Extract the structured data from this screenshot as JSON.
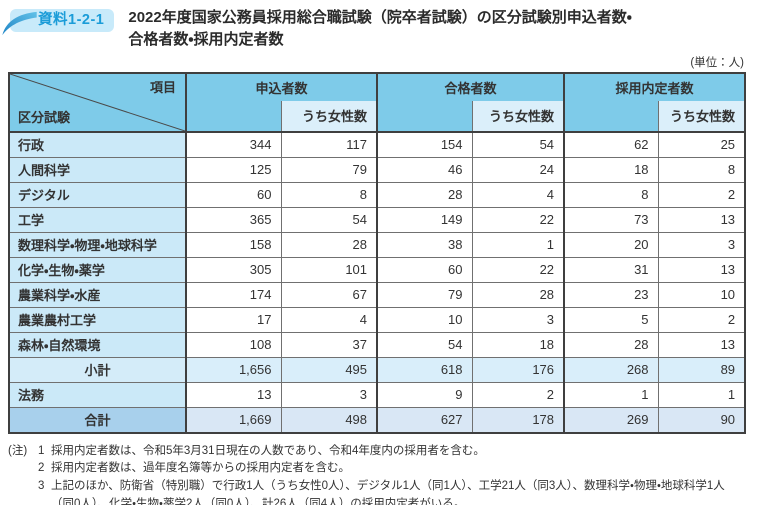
{
  "page": {
    "badge": "資料1-2-1",
    "title_line1": "2022年度国家公務員採用総合職試験（院卒者試験）の区分試験別申込者数・",
    "title_line2": "合格者数・採用内定者数",
    "unit_note": "(単位：人)"
  },
  "table": {
    "corner": {
      "top": "項目",
      "bottom": "区分試験"
    },
    "col_groups": [
      {
        "label": "申込者数",
        "sub": "うち女性数"
      },
      {
        "label": "合格者数",
        "sub": "うち女性数"
      },
      {
        "label": "採用内定者数",
        "sub": "うち女性数"
      }
    ],
    "rows": [
      {
        "label": "行政",
        "type": "normal",
        "values": [
          "344",
          "117",
          "154",
          "54",
          "62",
          "25"
        ]
      },
      {
        "label": "人間科学",
        "type": "normal",
        "values": [
          "125",
          "79",
          "46",
          "24",
          "18",
          "8"
        ]
      },
      {
        "label": "デジタル",
        "type": "normal",
        "values": [
          "60",
          "8",
          "28",
          "4",
          "8",
          "2"
        ]
      },
      {
        "label": "工学",
        "type": "normal",
        "values": [
          "365",
          "54",
          "149",
          "22",
          "73",
          "13"
        ]
      },
      {
        "label": "数理科学・物理・地球科学",
        "type": "normal",
        "values": [
          "158",
          "28",
          "38",
          "1",
          "20",
          "3"
        ]
      },
      {
        "label": "化学・生物・薬学",
        "type": "normal",
        "values": [
          "305",
          "101",
          "60",
          "22",
          "31",
          "13"
        ]
      },
      {
        "label": "農業科学・水産",
        "type": "normal",
        "values": [
          "174",
          "67",
          "79",
          "28",
          "23",
          "10"
        ]
      },
      {
        "label": "農業農村工学",
        "type": "normal",
        "values": [
          "17",
          "4",
          "10",
          "3",
          "5",
          "2"
        ]
      },
      {
        "label": "森林・自然環境",
        "type": "normal",
        "values": [
          "108",
          "37",
          "54",
          "18",
          "28",
          "13"
        ]
      },
      {
        "label": "小計",
        "type": "subtotal",
        "values": [
          "1,656",
          "495",
          "618",
          "176",
          "268",
          "89"
        ]
      },
      {
        "label": "法務",
        "type": "normal",
        "values": [
          "13",
          "3",
          "9",
          "2",
          "1",
          "1"
        ]
      },
      {
        "label": "合計",
        "type": "total",
        "values": [
          "1,669",
          "498",
          "627",
          "178",
          "269",
          "90"
        ]
      }
    ]
  },
  "notes": {
    "label": "(注)",
    "items": [
      {
        "num": "1",
        "text": "採用内定者数は、令和5年3月31日現在の人数であり、令和4年度内の採用者を含む。"
      },
      {
        "num": "2",
        "text": "採用内定者数は、過年度名簿等からの採用内定者を含む。"
      },
      {
        "num": "3",
        "text": "上記のほか、防衛省（特別職）で行政1人（うち女性0人）、デジタル1人（同1人）、工学21人（同3人）、数理科学・物理・地球科学1人（同0人）、化学・生物・薬学2人（同0人）、計26人（同4人）の採用内定者がいる。"
      }
    ]
  },
  "colors": {
    "header_bg": "#7ecbe9",
    "female_header_bg": "#dbeffa",
    "label_column_bg": "#cbe9f8",
    "subtotal_bg": "#d9eefa",
    "total_label_bg": "#a8d0ec",
    "total_value_bg": "#d9e7f5",
    "badge_bg": "#c8eafa",
    "badge_text": "#1b9cd8",
    "accent_blue": "#2d9ad4"
  }
}
